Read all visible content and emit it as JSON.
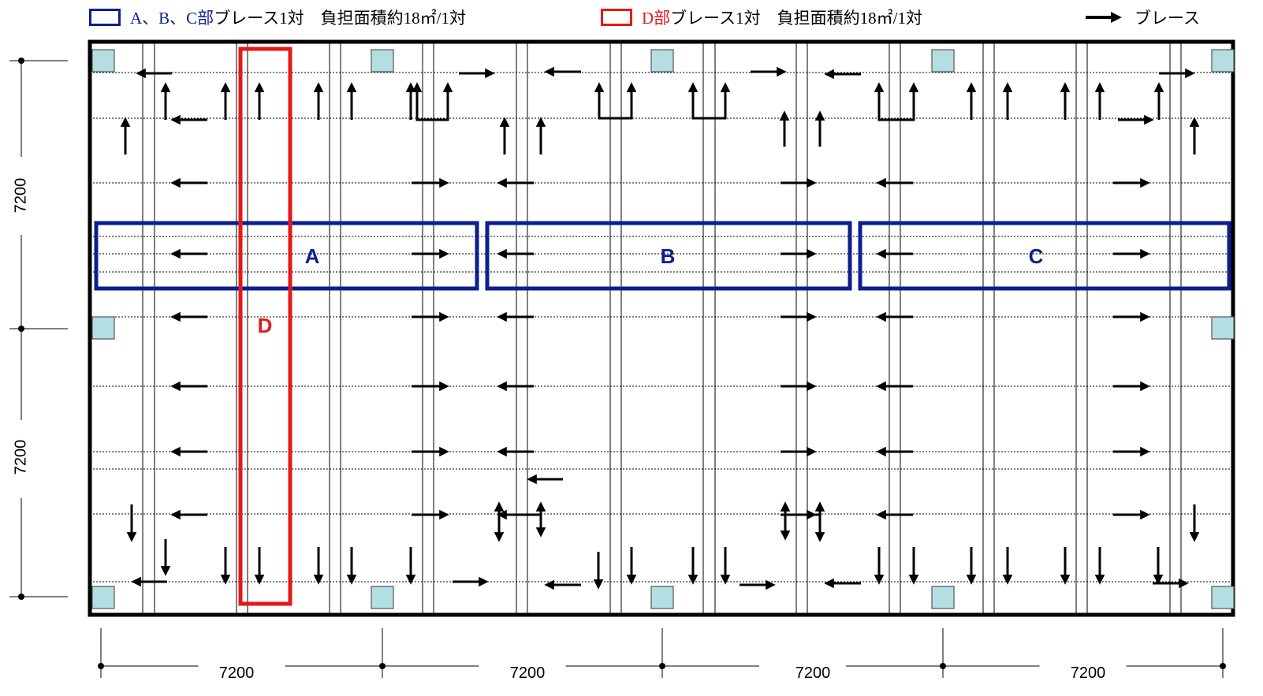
{
  "legend": {
    "abc": {
      "highlight": "A、B、C部",
      "text": "ブレース1対　負担面積約18㎡/1対",
      "color": "#0b1f8f"
    },
    "d": {
      "highlight": "D部",
      "text": "ブレース1対　負担面積約18㎡/1対",
      "color": "#e51919"
    },
    "brace": {
      "text": "ブレース",
      "icon": "arrow-right-icon"
    }
  },
  "zones": [
    {
      "label": "A",
      "color": "#0b1f8f"
    },
    {
      "label": "B",
      "color": "#0b1f8f"
    },
    {
      "label": "C",
      "color": "#0b1f8f"
    },
    {
      "label": "D",
      "color": "#e51919"
    }
  ],
  "dimensions": {
    "vertical": [
      "7200",
      "7200"
    ],
    "horizontal": [
      "7200",
      "7200",
      "7200",
      "7200"
    ]
  },
  "colors": {
    "column": "#b4dfe2",
    "frame": "#000000"
  }
}
